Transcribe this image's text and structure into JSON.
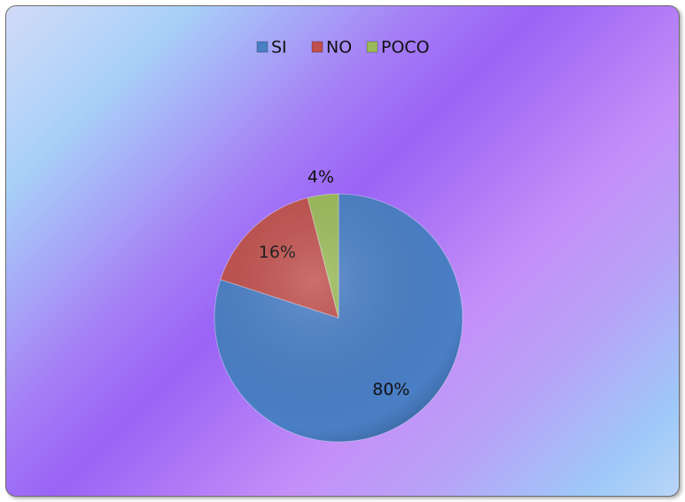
{
  "chart_data": {
    "type": "pie",
    "categories": [
      "SI",
      "NO",
      "POCO"
    ],
    "values": [
      80,
      16,
      4
    ],
    "value_labels": [
      "80%",
      "16%",
      "4%"
    ],
    "colors": [
      "#4a7fc6",
      "#c0504d",
      "#9bbb59"
    ],
    "legend": "top"
  }
}
